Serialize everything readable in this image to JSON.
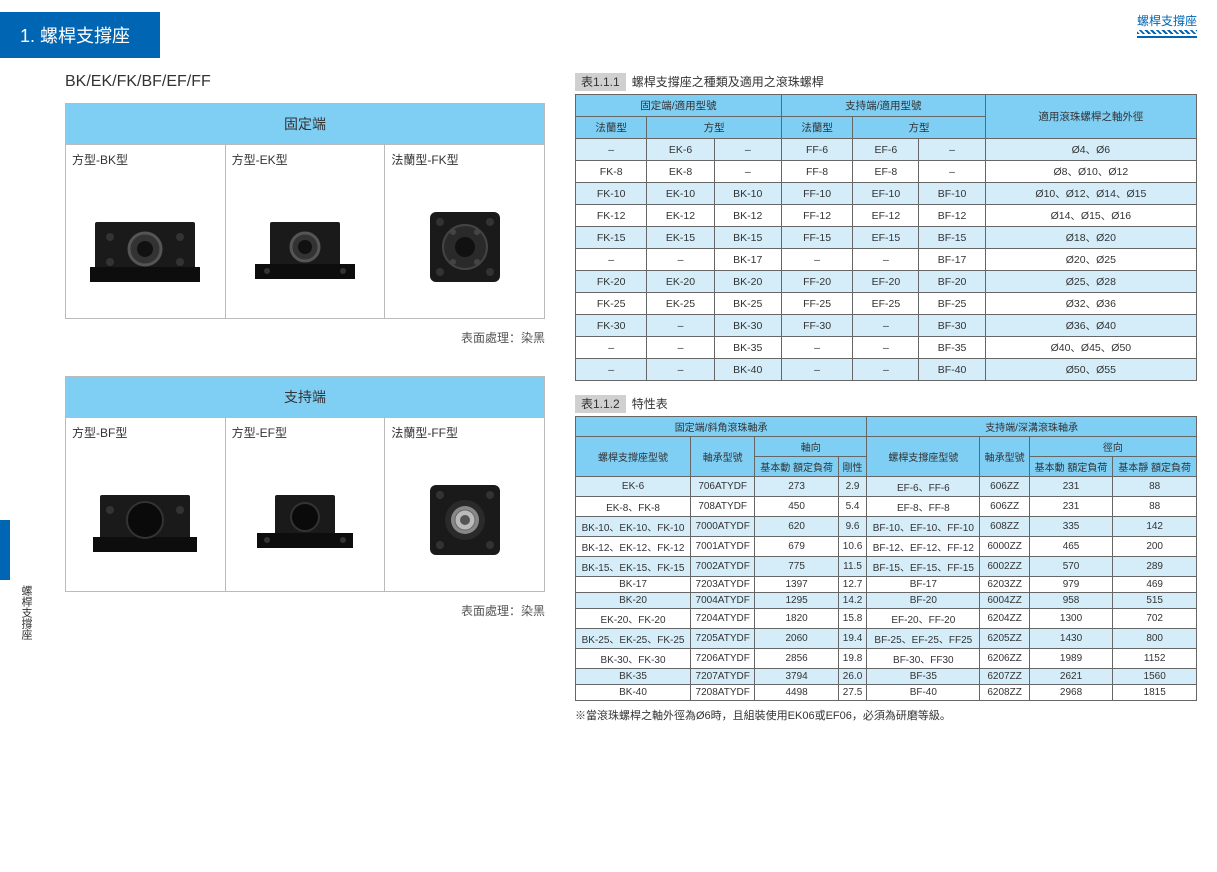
{
  "header": {
    "title": "1. 螺桿支撐座",
    "top_right": "螺桿支撐座",
    "side_text": "螺桿支撐座"
  },
  "subtitle": "BK/EK/FK/BF/EF/FF",
  "box1": {
    "hdr": "固定端",
    "cells": [
      {
        "lbl": "方型-BK型"
      },
      {
        "lbl": "方型-EK型"
      },
      {
        "lbl": "法蘭型-FK型"
      }
    ],
    "note": "表面處理：染黑"
  },
  "box2": {
    "hdr": "支持端",
    "cells": [
      {
        "lbl": "方型-BF型"
      },
      {
        "lbl": "方型-EF型"
      },
      {
        "lbl": "法蘭型-FF型"
      }
    ],
    "note": "表面處理：染黑"
  },
  "table1": {
    "caption_num": "表1.1.1",
    "caption_txt": "螺桿支撐座之種類及適用之滾珠螺桿",
    "hdr1": [
      "固定端/適用型號",
      "支持端/適用型號",
      "適用滾珠螺桿之軸外徑"
    ],
    "hdr2": [
      "法蘭型",
      "方型",
      "法蘭型",
      "方型"
    ],
    "rows": [
      [
        "–",
        "EK-6",
        "–",
        "FF-6",
        "EF-6",
        "–",
        "Ø4、Ø6"
      ],
      [
        "FK-8",
        "EK-8",
        "–",
        "FF-8",
        "EF-8",
        "–",
        "Ø8、Ø10、Ø12"
      ],
      [
        "FK-10",
        "EK-10",
        "BK-10",
        "FF-10",
        "EF-10",
        "BF-10",
        "Ø10、Ø12、Ø14、Ø15"
      ],
      [
        "FK-12",
        "EK-12",
        "BK-12",
        "FF-12",
        "EF-12",
        "BF-12",
        "Ø14、Ø15、Ø16"
      ],
      [
        "FK-15",
        "EK-15",
        "BK-15",
        "FF-15",
        "EF-15",
        "BF-15",
        "Ø18、Ø20"
      ],
      [
        "–",
        "–",
        "BK-17",
        "–",
        "–",
        "BF-17",
        "Ø20、Ø25"
      ],
      [
        "FK-20",
        "EK-20",
        "BK-20",
        "FF-20",
        "EF-20",
        "BF-20",
        "Ø25、Ø28"
      ],
      [
        "FK-25",
        "EK-25",
        "BK-25",
        "FF-25",
        "EF-25",
        "BF-25",
        "Ø32、Ø36"
      ],
      [
        "FK-30",
        "–",
        "BK-30",
        "FF-30",
        "–",
        "BF-30",
        "Ø36、Ø40"
      ],
      [
        "–",
        "–",
        "BK-35",
        "–",
        "–",
        "BF-35",
        "Ø40、Ø45、Ø50"
      ],
      [
        "–",
        "–",
        "BK-40",
        "–",
        "–",
        "BF-40",
        "Ø50、Ø55"
      ]
    ]
  },
  "table2": {
    "caption_num": "表1.1.2",
    "caption_txt": "特性表",
    "hdr_top": [
      "固定端/斜角滾珠軸承",
      "支持端/深溝滾珠軸承"
    ],
    "hdr_mid": [
      "螺桿支撐座型號",
      "軸承型號",
      "軸向",
      "螺桿支撐座型號",
      "軸承型號",
      "徑向"
    ],
    "hdr_sub": [
      "基本動\n額定負荷",
      "剛性",
      "基本動\n額定負荷",
      "基本靜\n額定負荷"
    ],
    "rows": [
      [
        "EK-6",
        "706ATYDF",
        "273",
        "2.9",
        "EF-6、FF-6",
        "606ZZ",
        "231",
        "88"
      ],
      [
        "EK-8、FK-8",
        "708ATYDF",
        "450",
        "5.4",
        "EF-8、FF-8",
        "606ZZ",
        "231",
        "88"
      ],
      [
        "BK-10、EK-10、FK-10",
        "7000ATYDF",
        "620",
        "9.6",
        "BF-10、EF-10、FF-10",
        "608ZZ",
        "335",
        "142"
      ],
      [
        "BK-12、EK-12、FK-12",
        "7001ATYDF",
        "679",
        "10.6",
        "BF-12、EF-12、FF-12",
        "6000ZZ",
        "465",
        "200"
      ],
      [
        "BK-15、EK-15、FK-15",
        "7002ATYDF",
        "775",
        "11.5",
        "BF-15、EF-15、FF-15",
        "6002ZZ",
        "570",
        "289"
      ],
      [
        "BK-17",
        "7203ATYDF",
        "1397",
        "12.7",
        "BF-17",
        "6203ZZ",
        "979",
        "469"
      ],
      [
        "BK-20",
        "7004ATYDF",
        "1295",
        "14.2",
        "BF-20",
        "6004ZZ",
        "958",
        "515"
      ],
      [
        "EK-20、FK-20",
        "7204ATYDF",
        "1820",
        "15.8",
        "EF-20、FF-20",
        "6204ZZ",
        "1300",
        "702"
      ],
      [
        "BK-25、EK-25、FK-25",
        "7205ATYDF",
        "2060",
        "19.4",
        "BF-25、EF-25、FF25",
        "6205ZZ",
        "1430",
        "800"
      ],
      [
        "BK-30、FK-30",
        "7206ATYDF",
        "2856",
        "19.8",
        "BF-30、FF30",
        "6206ZZ",
        "1989",
        "1152"
      ],
      [
        "BK-35",
        "7207ATYDF",
        "3794",
        "26.0",
        "BF-35",
        "6207ZZ",
        "2621",
        "1560"
      ],
      [
        "BK-40",
        "7208ATYDF",
        "4498",
        "27.5",
        "BF-40",
        "6208ZZ",
        "2968",
        "1815"
      ]
    ]
  },
  "footnote": "※當滾珠螺桿之軸外徑為Ø6時，且組裝使用EK06或EF06，必須為研磨等級。",
  "colors": {
    "primary": "#0066b3",
    "header_bg": "#7fcef4",
    "alt_row": "#d4edf9"
  }
}
